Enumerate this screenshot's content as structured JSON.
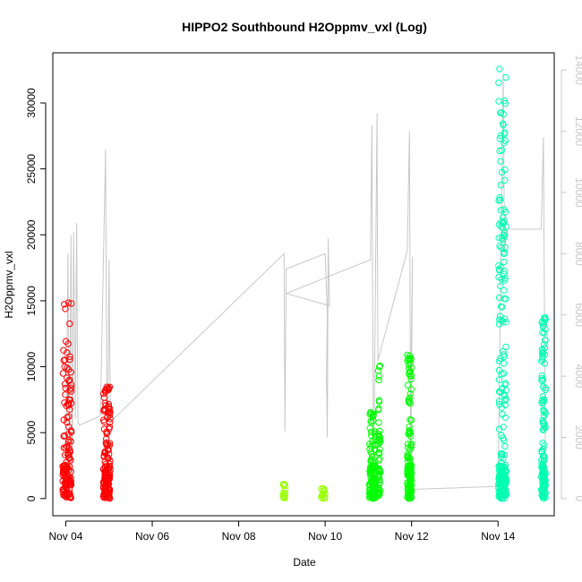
{
  "chart_data": {
    "type": "scatter",
    "title": "HIPPO2 Southbound H2Oppmv_vxl (Log)",
    "xlabel": "Date",
    "ylabel": "H2Oppmv_vxl",
    "x_ticks": [
      "Nov 04",
      "Nov 06",
      "Nov 08",
      "Nov 10",
      "Nov 12",
      "Nov 14"
    ],
    "x_tick_values": [
      4,
      6,
      8,
      10,
      12,
      14
    ],
    "xlim": [
      3.7,
      15.3
    ],
    "ylim": [
      -1300,
      33800
    ],
    "y_ticks": [
      0,
      5000,
      10000,
      15000,
      20000,
      25000,
      30000
    ],
    "y2_ticks": [
      0,
      2000,
      4000,
      6000,
      8000,
      10000,
      12000,
      14000
    ],
    "y2lim": [
      -560,
      14560
    ],
    "axis_colors": {
      "left": "#000000",
      "right": "#c8c8c8",
      "line": "#c8c8c8"
    },
    "scatter_series": [
      {
        "color": "#ff0000",
        "clusters": [
          {
            "x": 4.03,
            "width": 0.2,
            "ymax": 15800,
            "dense_max": 10800,
            "n": 140
          },
          {
            "x": 4.95,
            "width": 0.16,
            "ymax": 8500,
            "dense_max": 7400,
            "n": 150
          }
        ]
      },
      {
        "color": "#99ff00",
        "clusters": [
          {
            "x": 9.05,
            "width": 0.05,
            "ymax": 1100,
            "dense_max": 800,
            "n": 14
          },
          {
            "x": 9.95,
            "width": 0.1,
            "ymax": 800,
            "dense_max": 600,
            "n": 16
          }
        ]
      },
      {
        "color": "#00ff00",
        "clusters": [
          {
            "x": 11.1,
            "width": 0.15,
            "ymax": 6900,
            "dense_max": 4500,
            "n": 120
          },
          {
            "x": 11.25,
            "width": 0.05,
            "ymax": 10100,
            "dense_max": 6000,
            "n": 50
          },
          {
            "x": 11.95,
            "width": 0.1,
            "ymax": 11000,
            "dense_max": 8900,
            "n": 130
          }
        ]
      },
      {
        "color": "#00ffb0",
        "clusters": [
          {
            "x": 14.1,
            "width": 0.18,
            "ymax": 32700,
            "dense_max": 21000,
            "n": 230
          },
          {
            "x": 15.05,
            "width": 0.1,
            "ymax": 13800,
            "dense_max": 11000,
            "n": 130
          }
        ]
      }
    ],
    "altitude_line": {
      "color": "#c8c8c8",
      "points": [
        [
          4.0,
          300
        ],
        [
          4.05,
          8000
        ],
        [
          4.08,
          500
        ],
        [
          4.12,
          8600
        ],
        [
          4.15,
          400
        ],
        [
          4.18,
          8700
        ],
        [
          4.22,
          2600
        ],
        [
          4.25,
          9000
        ],
        [
          4.28,
          2500
        ],
        [
          4.32,
          2400
        ],
        [
          4.8,
          2700
        ],
        [
          4.92,
          11400
        ],
        [
          4.96,
          300
        ],
        [
          5.0,
          7800
        ],
        [
          5.03,
          2500
        ],
        [
          9.05,
          8000
        ],
        [
          9.07,
          2200
        ],
        [
          9.1,
          7500
        ],
        [
          10.0,
          8000
        ],
        [
          10.05,
          6000
        ],
        [
          10.03,
          4000
        ],
        [
          10.05,
          2000
        ],
        [
          10.07,
          8500
        ],
        [
          10.1,
          6300
        ],
        [
          9.1,
          6700
        ],
        [
          11.05,
          7800
        ],
        [
          11.08,
          12200
        ],
        [
          11.12,
          300
        ],
        [
          11.2,
          12600
        ],
        [
          11.22,
          4500
        ],
        [
          11.9,
          8100
        ],
        [
          11.95,
          12000
        ],
        [
          11.98,
          300
        ],
        [
          12.02,
          7900
        ],
        [
          11.95,
          300
        ],
        [
          14.0,
          400
        ],
        [
          14.12,
          13900
        ],
        [
          14.15,
          8000
        ],
        [
          14.2,
          8800
        ],
        [
          15.0,
          8800
        ],
        [
          15.05,
          11800
        ],
        [
          15.1,
          400
        ]
      ]
    }
  }
}
